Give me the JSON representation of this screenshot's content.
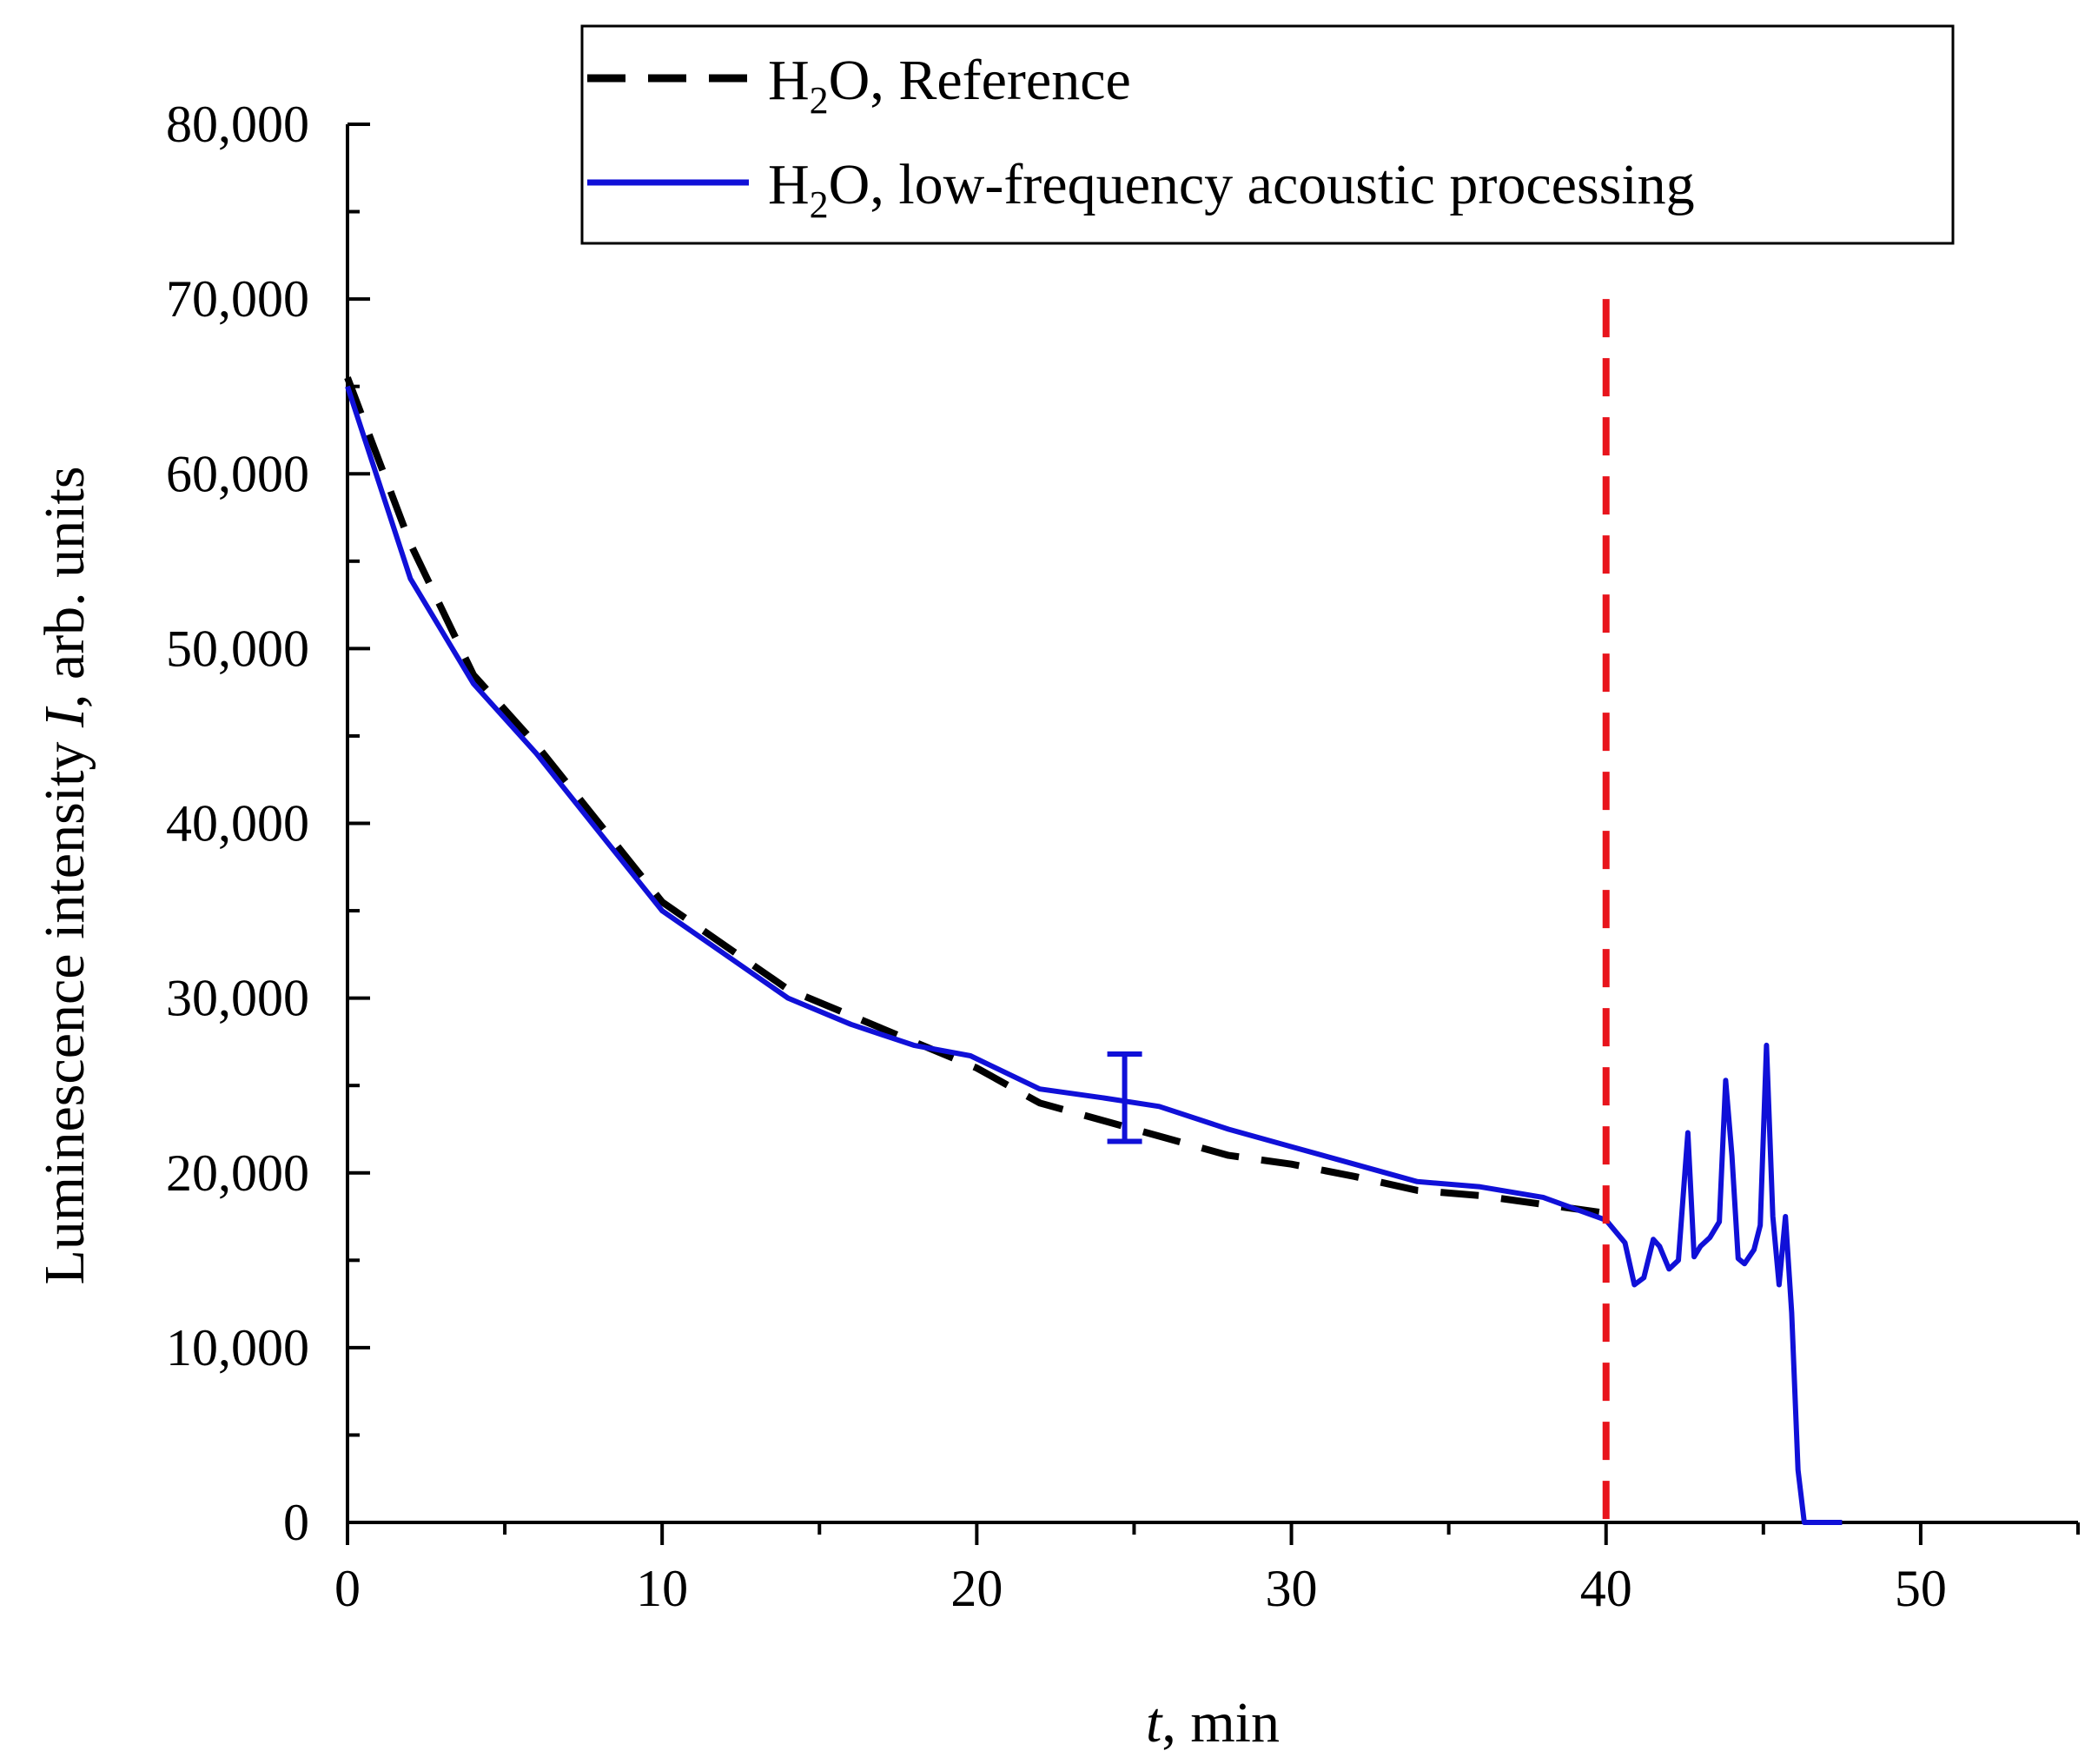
{
  "chart_data": {
    "type": "line",
    "title": "",
    "xlabel": {
      "italic": "t",
      "rest": ", min"
    },
    "ylabel": {
      "pre": "Luminescence intensity ",
      "italic": "I",
      "post": ", arb. units"
    },
    "xlim": [
      0,
      55
    ],
    "ylim": [
      0,
      80000
    ],
    "xticks": [
      0,
      10,
      20,
      30,
      40,
      50
    ],
    "xtick_labels": [
      "0",
      "10",
      "20",
      "30",
      "40",
      "50"
    ],
    "yticks": [
      0,
      10000,
      20000,
      30000,
      40000,
      50000,
      60000,
      70000,
      80000
    ],
    "ytick_labels": [
      "0",
      "10,000",
      "20,000",
      "30,000",
      "40,000",
      "50,000",
      "60,000",
      "70,000",
      "80,000"
    ],
    "grid": false,
    "legend_position": "top-right",
    "series": [
      {
        "name": "Reference",
        "legend": {
          "pre": "H",
          "sub": "2",
          "post": "O, Reference"
        },
        "style": "dashed",
        "color": "#000000",
        "x": [
          0,
          2,
          4,
          6,
          8,
          10,
          12,
          14,
          16,
          18,
          20,
          22,
          24,
          26,
          28,
          30,
          32,
          34,
          36,
          38,
          40
        ],
        "y": [
          65500,
          56000,
          48500,
          44500,
          40000,
          35500,
          33000,
          30500,
          29000,
          27500,
          26000,
          24000,
          23000,
          22000,
          21000,
          20500,
          19800,
          19000,
          18700,
          18200,
          17700
        ]
      },
      {
        "name": "low-frequency acoustic processing",
        "legend": {
          "pre": "H",
          "sub": "2",
          "post": "O, low-frequency acoustic processing"
        },
        "style": "solid",
        "color": "#1010d8",
        "x": [
          0,
          2,
          4,
          6,
          8,
          10,
          12,
          14,
          16,
          18,
          19.8,
          22,
          24,
          25.8,
          28,
          30,
          32,
          34,
          36,
          38,
          40,
          40.6,
          40.9,
          41.2,
          41.5,
          41.7,
          42,
          42.3,
          42.6,
          42.8,
          43,
          43.3,
          43.6,
          43.8,
          44,
          44.2,
          44.4,
          44.7,
          44.9,
          45.1,
          45.3,
          45.5,
          45.7,
          45.9,
          46.1,
          46.3,
          46.5,
          46.7,
          47,
          47.5
        ],
        "y": [
          65000,
          54000,
          48000,
          44000,
          39500,
          35000,
          32500,
          30000,
          28500,
          27300,
          26700,
          24800,
          24300,
          23800,
          22500,
          21500,
          20500,
          19500,
          19200,
          18600,
          17300,
          16000,
          13600,
          14000,
          16200,
          15800,
          14500,
          15000,
          22300,
          15200,
          15800,
          16300,
          17200,
          25300,
          21000,
          15100,
          14800,
          15600,
          17000,
          27300,
          17500,
          13600,
          17500,
          12000,
          3000,
          0,
          0,
          0,
          0,
          0
        ]
      }
    ],
    "error_bar": {
      "x": 24.7,
      "y": 24300,
      "low": 21800,
      "high": 26800,
      "color": "#1010d8"
    },
    "annotations": [
      {
        "type": "vline",
        "x": 40,
        "y_range": [
          0,
          70000
        ],
        "style": "dashed",
        "color": "#e8141c"
      }
    ]
  }
}
